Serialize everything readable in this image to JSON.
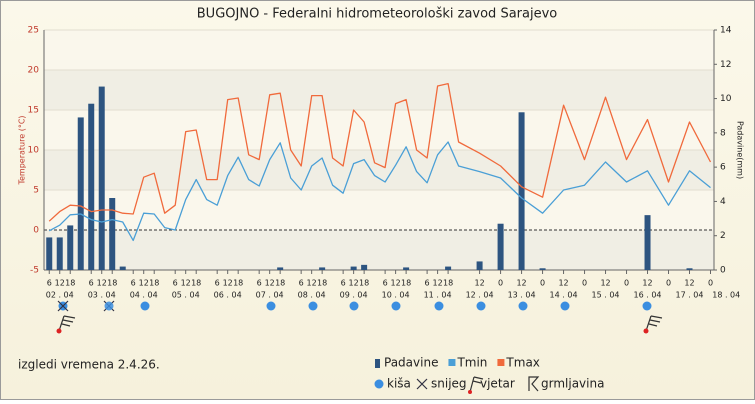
{
  "chart_data": {
    "type": "bar-line",
    "title": "BUGOJNO - Federalni hidrometeorološki zavod Sarajevo",
    "y_label": "Temperature (°C)",
    "y2_label": "Padavine(mm)",
    "ylim": [
      -5,
      25
    ],
    "yticks": [
      -5,
      0,
      5,
      10,
      15,
      20,
      25
    ],
    "y2lim": [
      0,
      14
    ],
    "y2ticks": [
      0,
      2,
      4,
      6,
      8,
      10,
      12,
      14
    ],
    "xlim": [
      3,
      386
    ],
    "xticks": [
      {
        "value": 6,
        "label": "6"
      },
      {
        "value": 12,
        "label": "12"
      },
      {
        "value": 18,
        "label": "18"
      },
      {
        "value": 30,
        "label": "6"
      },
      {
        "value": 36,
        "label": "12"
      },
      {
        "value": 42,
        "label": "18"
      },
      {
        "value": 54,
        "label": "6"
      },
      {
        "value": 60,
        "label": "12"
      },
      {
        "value": 66,
        "label": "18"
      },
      {
        "value": 78,
        "label": "6"
      },
      {
        "value": 84,
        "label": "12"
      },
      {
        "value": 90,
        "label": "18"
      },
      {
        "value": 102,
        "label": "6"
      },
      {
        "value": 108,
        "label": "12"
      },
      {
        "value": 114,
        "label": "18"
      },
      {
        "value": 126,
        "label": "6"
      },
      {
        "value": 132,
        "label": "12"
      },
      {
        "value": 138,
        "label": "18"
      },
      {
        "value": 150,
        "label": "6"
      },
      {
        "value": 156,
        "label": "12"
      },
      {
        "value": 162,
        "label": "18"
      },
      {
        "value": 174,
        "label": "6"
      },
      {
        "value": 180,
        "label": "12"
      },
      {
        "value": 186,
        "label": "18"
      },
      {
        "value": 198,
        "label": "6"
      },
      {
        "value": 204,
        "label": "12"
      },
      {
        "value": 210,
        "label": "18"
      },
      {
        "value": 222,
        "label": "6"
      },
      {
        "value": 228,
        "label": "12"
      },
      {
        "value": 234,
        "label": "18"
      },
      {
        "value": 252,
        "label": "12"
      },
      {
        "value": 264,
        "label": "0"
      },
      {
        "value": 276,
        "label": "12"
      },
      {
        "value": 288,
        "label": "0"
      },
      {
        "value": 300,
        "label": "12"
      },
      {
        "value": 312,
        "label": "0"
      },
      {
        "value": 324,
        "label": "12"
      },
      {
        "value": 336,
        "label": "0"
      },
      {
        "value": 348,
        "label": "12"
      },
      {
        "value": 360,
        "label": "0"
      },
      {
        "value": 372,
        "label": "12"
      },
      {
        "value": 384,
        "label": "0"
      }
    ],
    "date_labels": [
      {
        "value": 12,
        "label": "02 . 04"
      },
      {
        "value": 36,
        "label": "03 . 04"
      },
      {
        "value": 60,
        "label": "04 . 04"
      },
      {
        "value": 84,
        "label": "05 . 04"
      },
      {
        "value": 108,
        "label": "06 . 04"
      },
      {
        "value": 132,
        "label": "07 . 04"
      },
      {
        "value": 156,
        "label": "08 . 04"
      },
      {
        "value": 180,
        "label": "09 . 04"
      },
      {
        "value": 204,
        "label": "10 . 04"
      },
      {
        "value": 228,
        "label": "11 . 04"
      },
      {
        "value": 252,
        "label": "12 . 04"
      },
      {
        "value": 276,
        "label": "13 . 04"
      },
      {
        "value": 300,
        "label": "14 . 04"
      },
      {
        "value": 324,
        "label": "15 . 04"
      },
      {
        "value": 348,
        "label": "16 . 04"
      },
      {
        "value": 372,
        "label": "17 . 04"
      },
      {
        "value": 393,
        "label": "18 . 04"
      }
    ],
    "x": [
      6,
      12,
      18,
      24,
      30,
      36,
      42,
      48,
      54,
      60,
      66,
      72,
      78,
      84,
      90,
      96,
      102,
      108,
      114,
      120,
      126,
      132,
      138,
      144,
      150,
      156,
      162,
      168,
      174,
      180,
      186,
      192,
      198,
      204,
      210,
      216,
      222,
      228,
      234,
      240,
      252,
      264,
      276,
      288,
      300,
      312,
      324,
      336,
      348,
      360,
      372,
      384
    ],
    "series": [
      {
        "name": "Padavine",
        "type": "bar",
        "axis": "y2",
        "color": "#2d5480",
        "x": [
          6,
          12,
          18,
          24,
          30,
          36,
          42,
          48,
          138,
          162,
          180,
          186,
          210,
          234,
          252,
          264,
          276,
          288,
          348,
          372
        ],
        "values": [
          1.9,
          1.9,
          2.6,
          8.9,
          9.7,
          10.7,
          4.2,
          0.2,
          0.15,
          0.15,
          0.2,
          0.3,
          0.15,
          0.2,
          0.5,
          2.7,
          9.2,
          0.1,
          3.2,
          0.1
        ]
      },
      {
        "name": "Tmin",
        "type": "line",
        "color": "#4a9fd6",
        "values": [
          -0.1,
          0.6,
          1.9,
          2.0,
          1.3,
          1.0,
          1.3,
          1.0,
          -1.3,
          2.1,
          2.0,
          0.3,
          0.0,
          3.8,
          6.3,
          3.8,
          3.1,
          6.8,
          9.1,
          6.3,
          5.5,
          8.8,
          10.9,
          6.5,
          5.0,
          8.0,
          9.0,
          5.6,
          4.6,
          8.3,
          8.8,
          6.8,
          6.0,
          8.1,
          10.4,
          7.3,
          5.9,
          9.4,
          11.0,
          8.0,
          7.3,
          6.5,
          4.0,
          2.1,
          5.0,
          5.6,
          8.5,
          6.0,
          7.4,
          3.1,
          7.4,
          5.3
        ]
      },
      {
        "name": "Tmax",
        "type": "line",
        "color": "#f06a3c",
        "values": [
          1.1,
          2.3,
          3.1,
          3.0,
          2.3,
          2.5,
          2.5,
          2.1,
          2.0,
          6.6,
          7.1,
          2.1,
          3.1,
          12.3,
          12.5,
          6.3,
          6.3,
          16.3,
          16.5,
          9.4,
          8.8,
          16.9,
          17.1,
          10.0,
          8.0,
          16.8,
          16.8,
          9.0,
          8.0,
          15.0,
          13.5,
          8.4,
          7.8,
          15.8,
          16.3,
          10.0,
          9.0,
          18.0,
          18.3,
          11.0,
          9.6,
          8.0,
          5.4,
          4.1,
          15.6,
          8.8,
          16.6,
          8.8,
          13.8,
          6.0,
          13.5,
          8.5
        ]
      }
    ],
    "weather_legend": [
      "kiša",
      "snijeg",
      "vjetar",
      "grmljavina"
    ],
    "footer": "izgledi vremena 2.4.26."
  }
}
